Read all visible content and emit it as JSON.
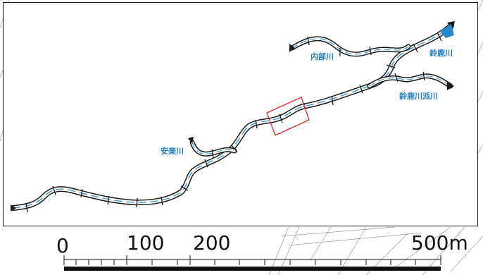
{
  "rivers": {
    "anraku": "安楽川",
    "uchibe": "内部川",
    "suzuka": "鈴鹿川",
    "suzuka_ha": "鈴鹿川派川"
  },
  "scale": {
    "t0": "0",
    "t100": "100",
    "t200": "200",
    "t500": "500m"
  },
  "colors": {
    "water": "#2a86c8",
    "frame": "#1a1a1a",
    "highlight": "#e0282e",
    "label": "#1f7fc4"
  }
}
